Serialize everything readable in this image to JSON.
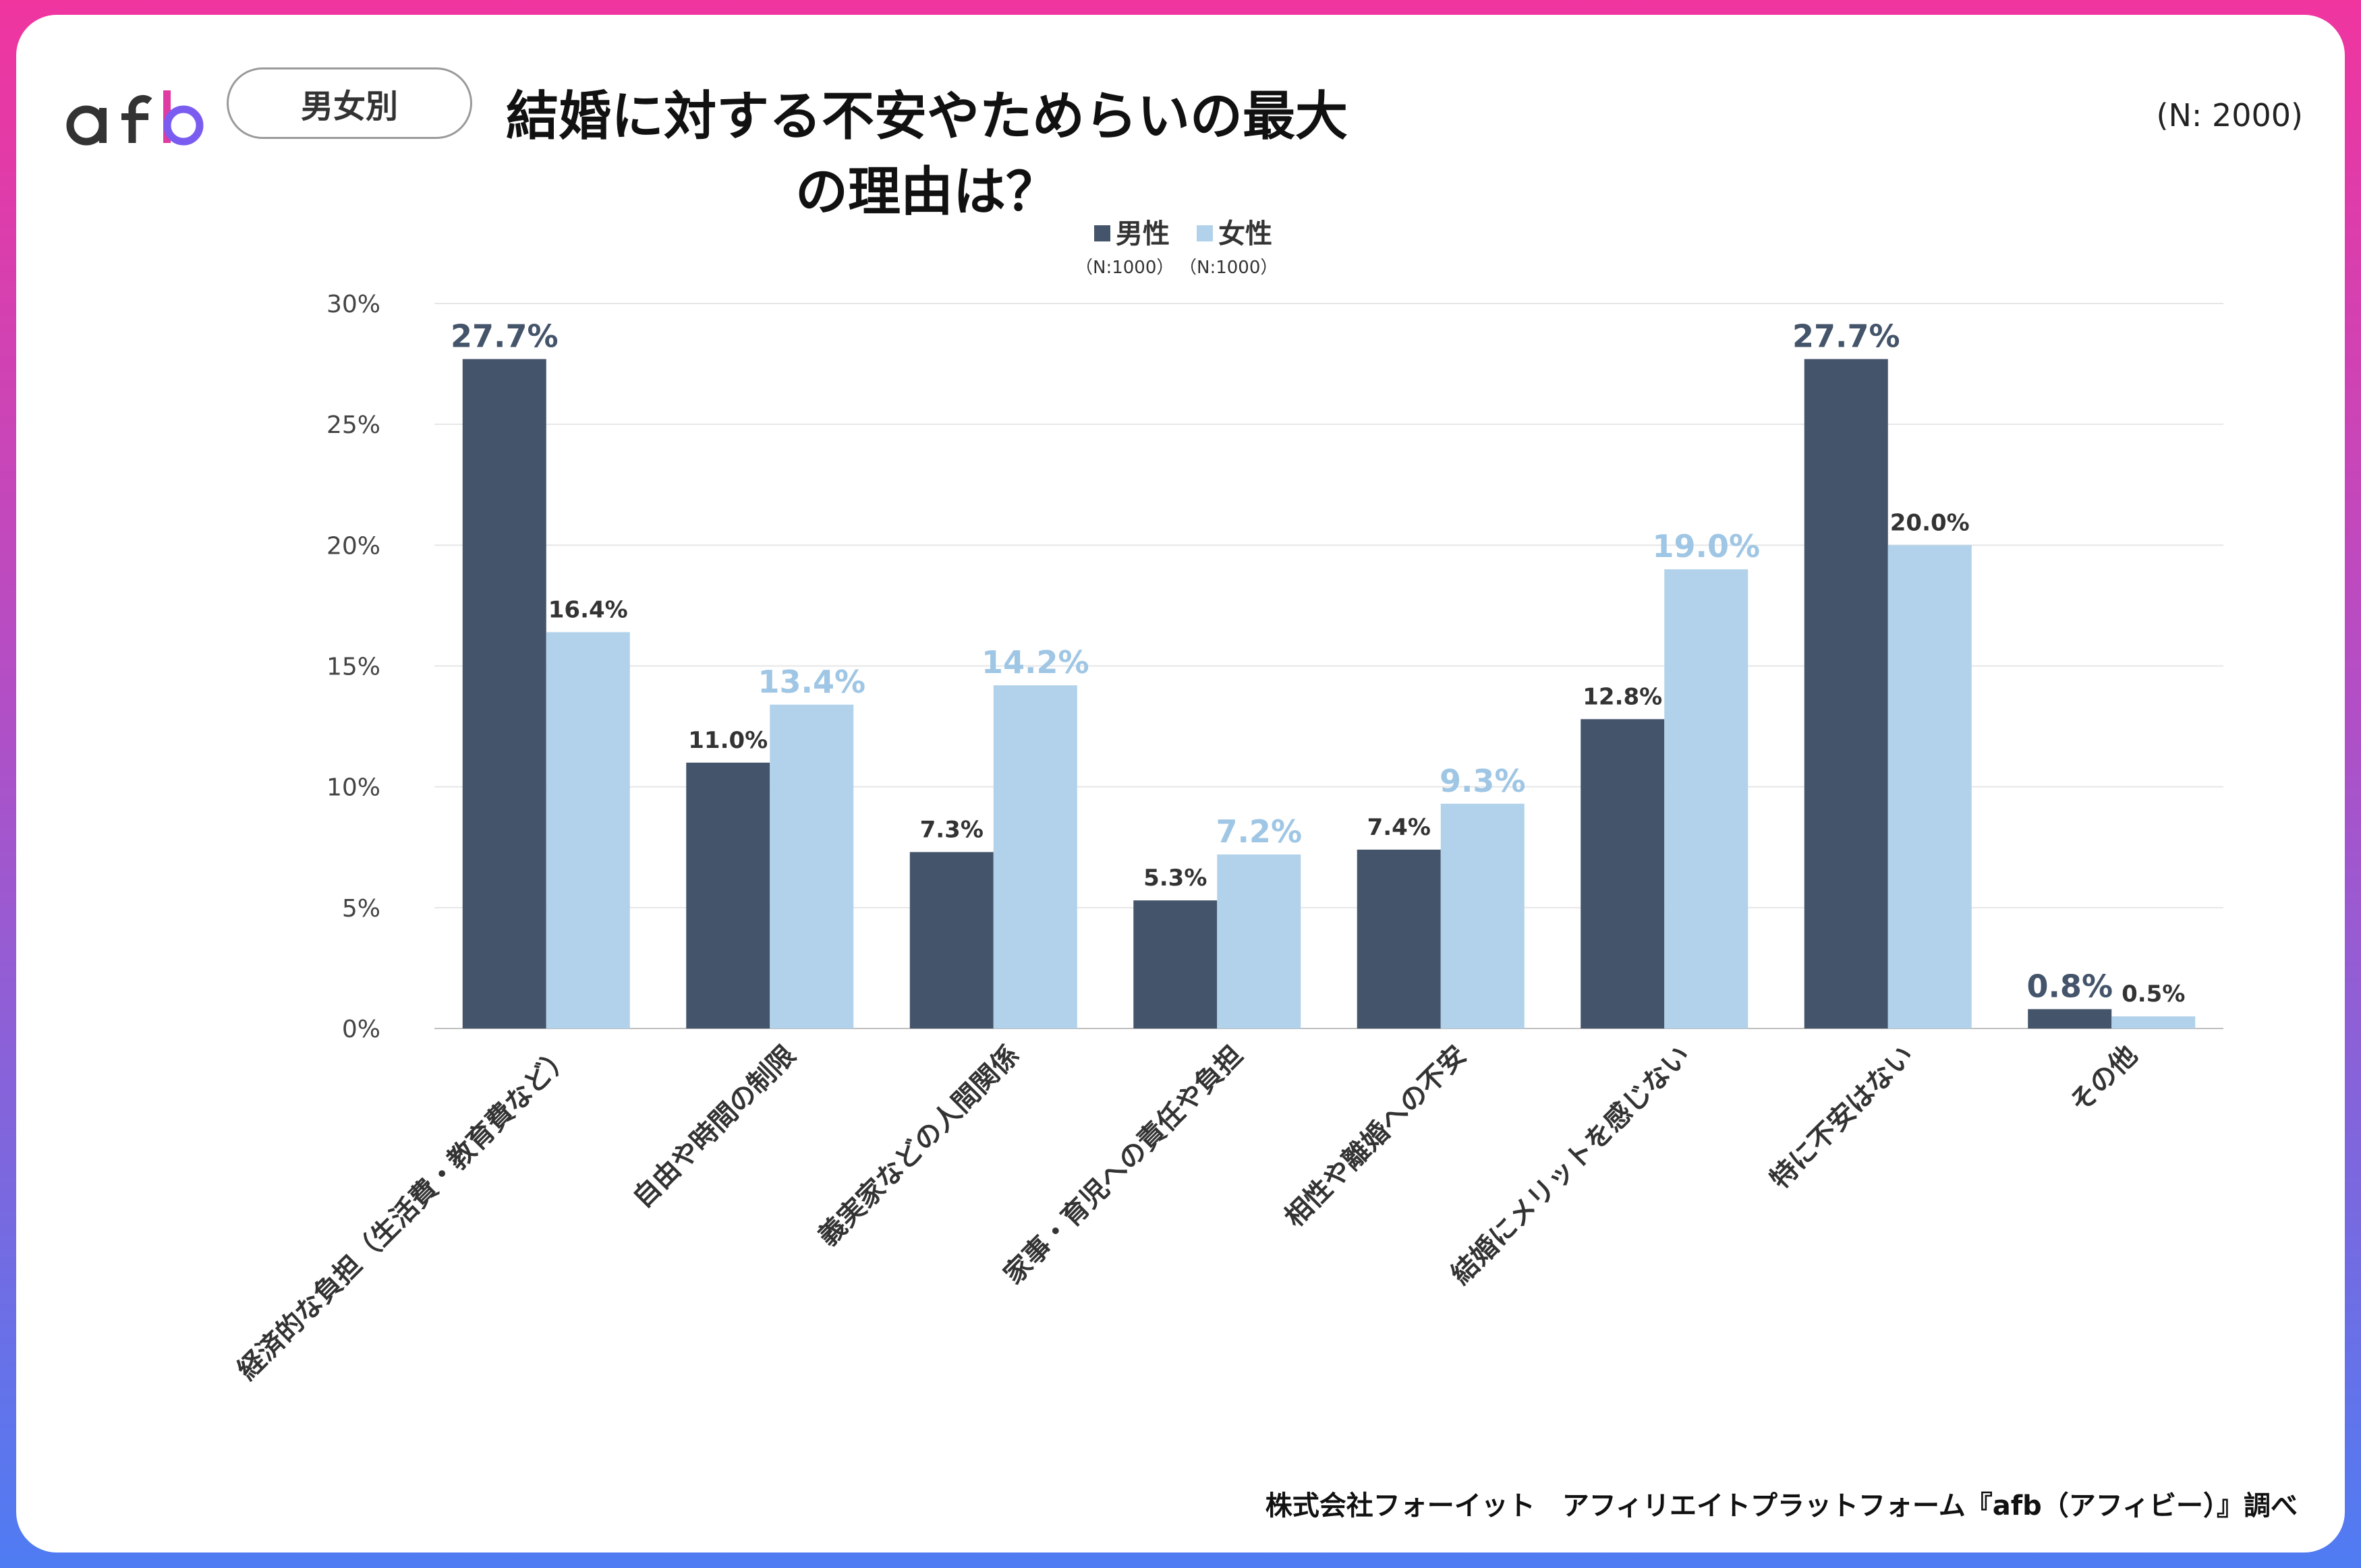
{
  "header": {
    "badge": "男女別",
    "title": "結婚に対する不安やためらいの最大の理由は？",
    "total_n": "(N: 2000)"
  },
  "brand": {
    "name": "afb",
    "colors": {
      "start": "#f0359f",
      "end": "#4f7cf3"
    }
  },
  "legend": [
    {
      "label": "男性",
      "n": "（N:1000）",
      "color": "#44546a"
    },
    {
      "label": "女性",
      "n": "（N:1000）",
      "color": "#b1d2ea"
    }
  ],
  "chart_data": {
    "type": "bar",
    "categories": [
      "経済的な負担（生活費・教育費など）",
      "自由や時間の制限",
      "義実家などの人間関係",
      "家事・育児への責任や負担",
      "相性や離婚への不安",
      "結婚にメリットを感じない",
      "特に不安はない",
      "その他"
    ],
    "series": [
      {
        "name": "男性",
        "values": [
          27.7,
          11.0,
          7.3,
          5.3,
          7.4,
          12.8,
          27.7,
          0.8
        ],
        "color": "#44546a"
      },
      {
        "name": "女性",
        "values": [
          16.4,
          13.4,
          14.2,
          7.2,
          9.3,
          19.0,
          20.0,
          0.5
        ],
        "color": "#b1d2ea"
      }
    ],
    "highlight": {
      "男性": [
        true,
        false,
        false,
        false,
        false,
        false,
        true,
        true
      ],
      "女性": [
        false,
        true,
        true,
        true,
        true,
        true,
        false,
        false
      ]
    },
    "yticks": [
      "0%",
      "5%",
      "10%",
      "15%",
      "20%",
      "25%",
      "30%"
    ],
    "ylim": [
      0,
      30
    ],
    "grid": true,
    "legend_position": "top-center"
  },
  "footer": {
    "source": "株式会社フォーイット　アフィリエイトプラットフォーム『afb（アフィビー）』調べ"
  }
}
